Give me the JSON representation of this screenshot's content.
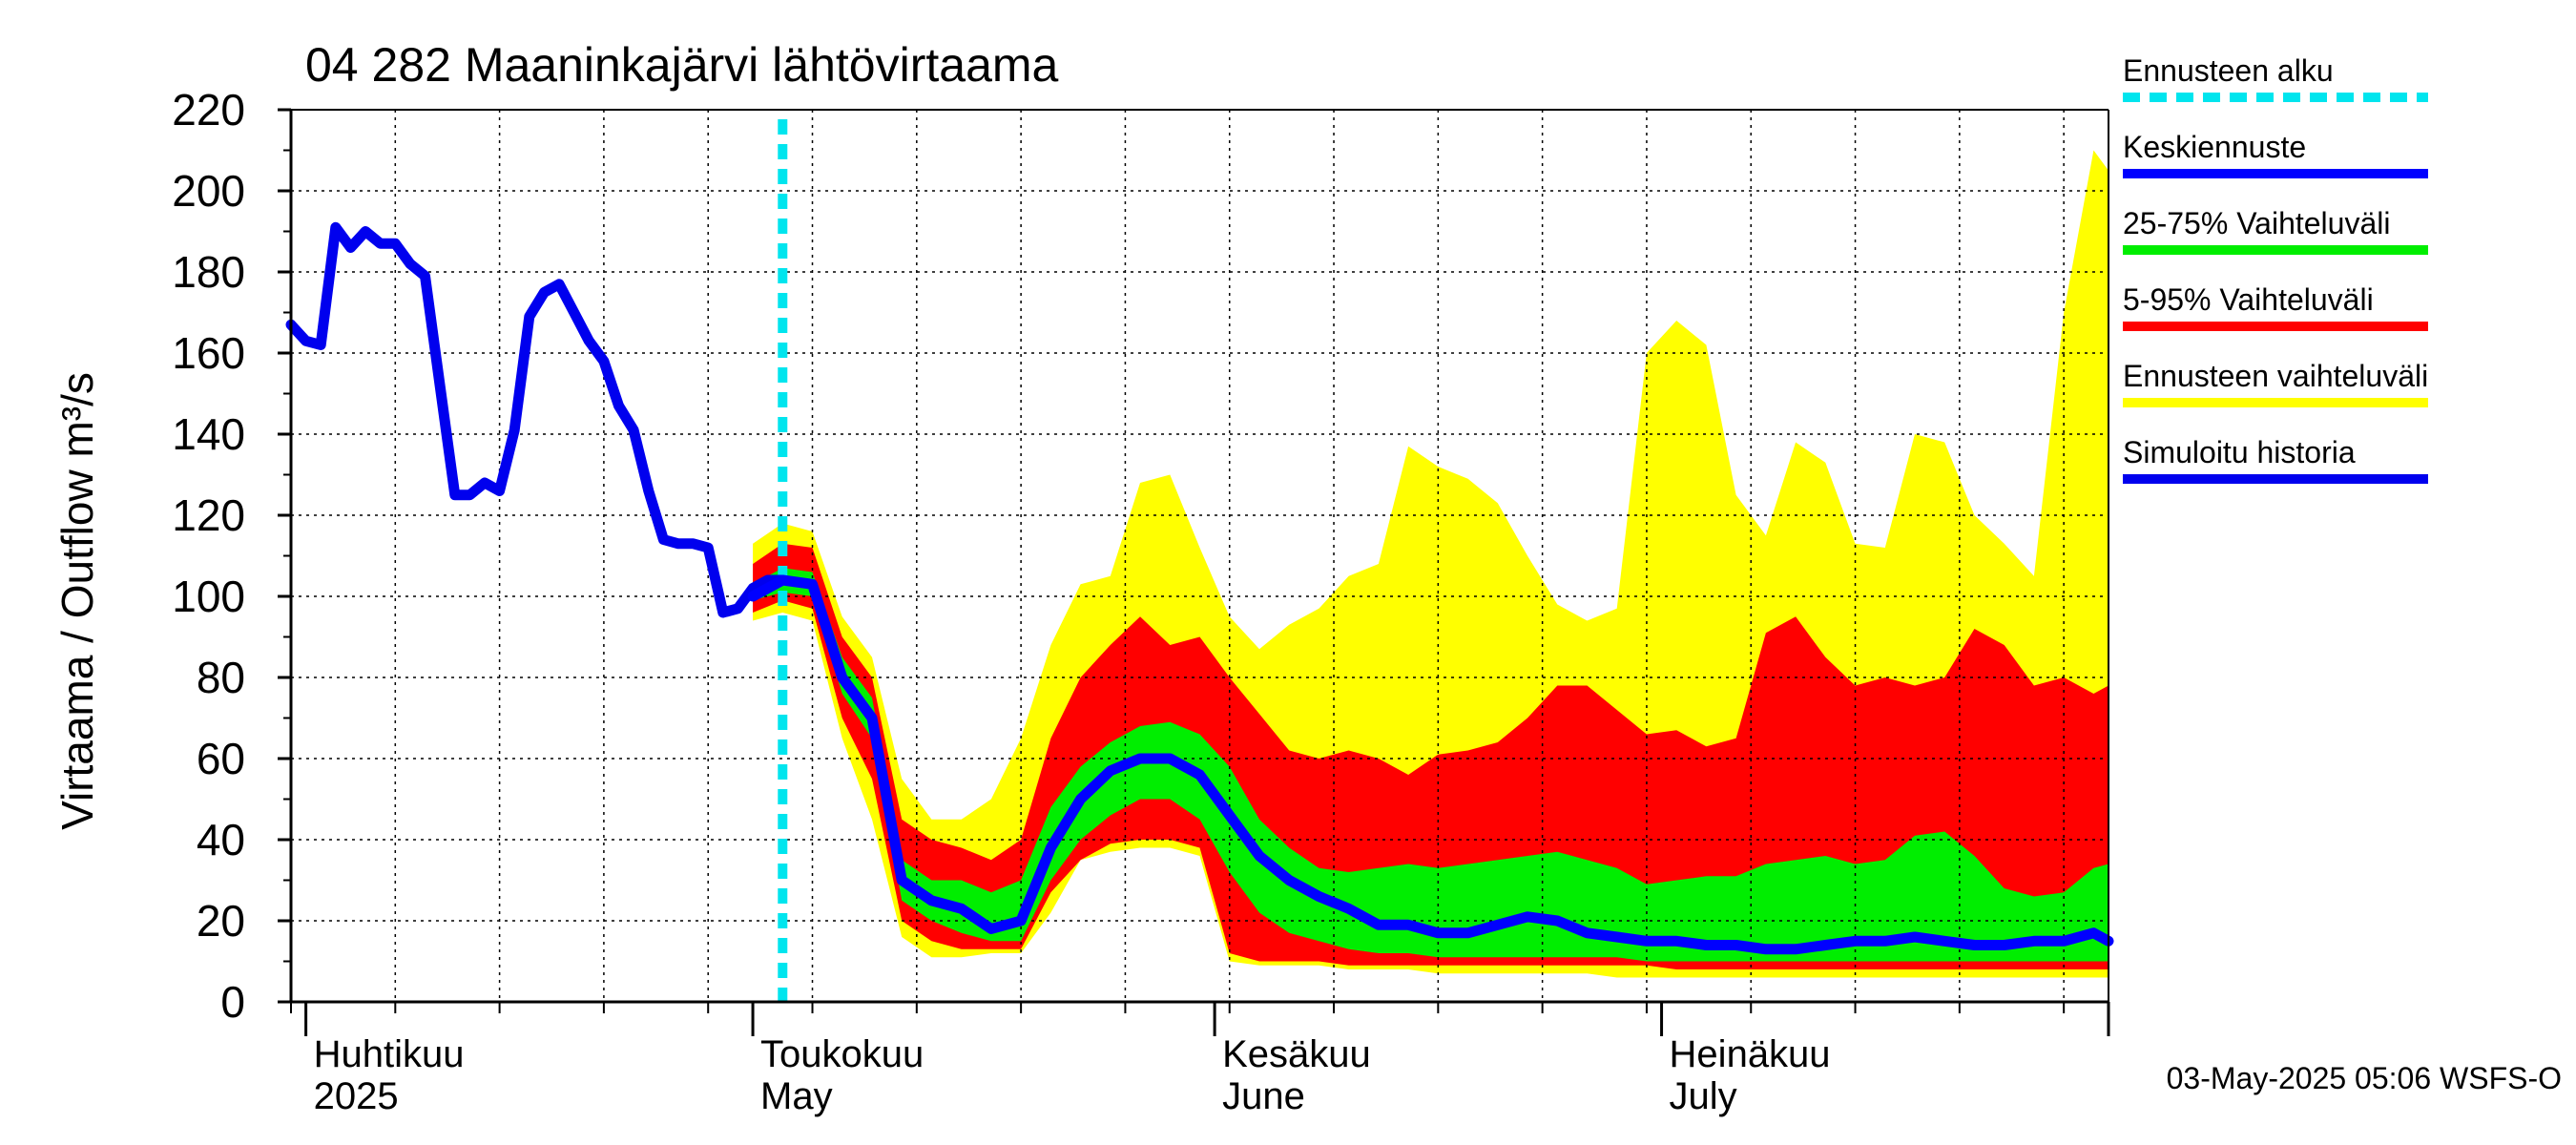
{
  "chart_data": {
    "type": "area",
    "title": "04 282 Maaninkajärvi lähtövirtaama",
    "ylabel": "Virtaama / Outflow    m³/s",
    "ylim": [
      0,
      220
    ],
    "yticks": [
      0,
      20,
      40,
      60,
      80,
      100,
      120,
      140,
      160,
      180,
      200,
      220
    ],
    "xlim": [
      "2025-03-31",
      "2025-07-31"
    ],
    "grid": true,
    "legend_position": "right",
    "month_labels": [
      {
        "date": "2025-04-01",
        "line1": "Huhtikuu",
        "line2": "2025"
      },
      {
        "date": "2025-05-01",
        "line1": "Toukokuu",
        "line2": "May"
      },
      {
        "date": "2025-06-01",
        "line1": "Kesäkuu",
        "line2": "June"
      },
      {
        "date": "2025-07-01",
        "line1": "Heinäkuu",
        "line2": "July"
      }
    ],
    "forecast_start": "2025-05-03",
    "footer": "03-May-2025 05:06 WSFS-O",
    "legend": [
      {
        "label": "Ennusteen alku",
        "color": "#00e5ee",
        "style": "dashed"
      },
      {
        "label": "Keskiennuste",
        "color": "#0000ff",
        "style": "solid"
      },
      {
        "label": "25-75% Vaihteluväli",
        "color": "#00ee00",
        "style": "solid"
      },
      {
        "label": "5-95% Vaihteluväli",
        "color": "#ff0000",
        "style": "solid"
      },
      {
        "label": "Ennusteen vaihteluväli",
        "color": "#ffff00",
        "style": "solid"
      },
      {
        "label": "Simuloitu historia",
        "color": "#0000ee",
        "style": "solid"
      }
    ],
    "colors": {
      "forecast_start": "#00e5ee",
      "mean": "#0000ff",
      "p25_75": "#00ee00",
      "p5_95": "#ff0000",
      "range": "#ffff00",
      "history": "#0000ee"
    },
    "history": {
      "name": "Simuloitu historia",
      "x": [
        "2025-03-31",
        "2025-04-01",
        "2025-04-02",
        "2025-04-03",
        "2025-04-04",
        "2025-04-05",
        "2025-04-06",
        "2025-04-07",
        "2025-04-08",
        "2025-04-09",
        "2025-04-10",
        "2025-04-11",
        "2025-04-12",
        "2025-04-13",
        "2025-04-14",
        "2025-04-15",
        "2025-04-16",
        "2025-04-17",
        "2025-04-18",
        "2025-04-19",
        "2025-04-20",
        "2025-04-21",
        "2025-04-22",
        "2025-04-23",
        "2025-04-24",
        "2025-04-25",
        "2025-04-26",
        "2025-04-27",
        "2025-04-28",
        "2025-04-29",
        "2025-04-30",
        "2025-05-01",
        "2025-05-02",
        "2025-05-03"
      ],
      "y": [
        167,
        163,
        162,
        191,
        186,
        190,
        187,
        187,
        182,
        179,
        152,
        125,
        125,
        128,
        126,
        141,
        169,
        175,
        177,
        170,
        163,
        158,
        147,
        141,
        126,
        114,
        113,
        113,
        112,
        96,
        97,
        102,
        104,
        104
      ]
    },
    "forecast": {
      "x": [
        "2025-05-01",
        "2025-05-03",
        "2025-05-05",
        "2025-05-07",
        "2025-05-09",
        "2025-05-11",
        "2025-05-13",
        "2025-05-15",
        "2025-05-17",
        "2025-05-19",
        "2025-05-21",
        "2025-05-23",
        "2025-05-25",
        "2025-05-27",
        "2025-05-29",
        "2025-05-31",
        "2025-06-02",
        "2025-06-04",
        "2025-06-06",
        "2025-06-08",
        "2025-06-10",
        "2025-06-12",
        "2025-06-14",
        "2025-06-16",
        "2025-06-18",
        "2025-06-20",
        "2025-06-22",
        "2025-06-24",
        "2025-06-26",
        "2025-06-28",
        "2025-06-30",
        "2025-07-02",
        "2025-07-04",
        "2025-07-06",
        "2025-07-08",
        "2025-07-10",
        "2025-07-12",
        "2025-07-14",
        "2025-07-16",
        "2025-07-18",
        "2025-07-20",
        "2025-07-22",
        "2025-07-24",
        "2025-07-26",
        "2025-07-28",
        "2025-07-30",
        "2025-07-31"
      ],
      "mean": [
        100,
        104,
        103,
        80,
        70,
        30,
        25,
        23,
        18,
        20,
        38,
        50,
        57,
        60,
        60,
        56,
        46,
        36,
        30,
        26,
        23,
        19,
        19,
        17,
        17,
        19,
        21,
        20,
        17,
        16,
        15,
        15,
        14,
        14,
        13,
        13,
        14,
        15,
        15,
        16,
        15,
        14,
        14,
        15,
        15,
        17,
        15
      ],
      "p25_lo": [
        99,
        101,
        100,
        76,
        65,
        25,
        20,
        17,
        15,
        15,
        30,
        40,
        46,
        50,
        50,
        45,
        32,
        22,
        17,
        15,
        13,
        12,
        12,
        11,
        11,
        11,
        11,
        11,
        11,
        11,
        10,
        10,
        10,
        10,
        10,
        10,
        10,
        10,
        10,
        10,
        10,
        10,
        10,
        10,
        10,
        10,
        10
      ],
      "p25_hi": [
        103,
        107,
        106,
        85,
        75,
        35,
        30,
        30,
        27,
        30,
        48,
        58,
        64,
        68,
        69,
        66,
        58,
        45,
        38,
        33,
        32,
        33,
        34,
        33,
        34,
        35,
        36,
        37,
        35,
        33,
        29,
        30,
        31,
        31,
        34,
        35,
        36,
        34,
        35,
        41,
        42,
        36,
        28,
        26,
        27,
        33,
        34
      ],
      "p5_lo": [
        96,
        99,
        97,
        70,
        55,
        20,
        15,
        13,
        13,
        13,
        27,
        35,
        39,
        40,
        40,
        38,
        12,
        10,
        10,
        10,
        9,
        9,
        9,
        9,
        9,
        9,
        9,
        9,
        9,
        9,
        9,
        8,
        8,
        8,
        8,
        8,
        8,
        8,
        8,
        8,
        8,
        8,
        8,
        8,
        8,
        8,
        8
      ],
      "p5_hi": [
        108,
        113,
        112,
        90,
        80,
        45,
        40,
        38,
        35,
        40,
        65,
        80,
        88,
        95,
        88,
        90,
        80,
        71,
        62,
        60,
        62,
        60,
        56,
        61,
        62,
        64,
        70,
        78,
        78,
        72,
        66,
        67,
        63,
        65,
        91,
        95,
        85,
        78,
        80,
        78,
        80,
        92,
        88,
        78,
        80,
        76,
        78
      ],
      "range_lo": [
        94,
        96,
        94,
        65,
        45,
        16,
        11,
        11,
        12,
        12,
        22,
        35,
        37,
        38,
        38,
        36,
        10,
        9,
        9,
        9,
        8,
        8,
        8,
        7,
        7,
        7,
        7,
        7,
        7,
        6,
        6,
        6,
        6,
        6,
        6,
        6,
        6,
        6,
        6,
        6,
        6,
        6,
        6,
        6,
        6,
        6,
        6
      ],
      "range_hi": [
        113,
        118,
        116,
        95,
        85,
        55,
        45,
        45,
        50,
        65,
        88,
        103,
        105,
        128,
        130,
        112,
        95,
        87,
        93,
        97,
        105,
        108,
        137,
        132,
        129,
        123,
        110,
        98,
        94,
        97,
        160,
        168,
        162,
        125,
        115,
        138,
        133,
        113,
        112,
        140,
        138,
        120,
        113,
        105,
        170,
        210,
        205
      ]
    }
  }
}
